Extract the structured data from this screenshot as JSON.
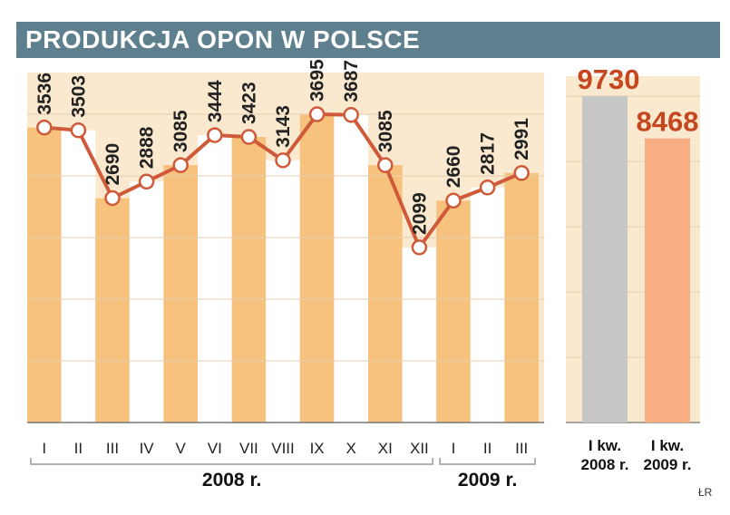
{
  "header": {
    "title": "PRODUKCJA OPON W POLSCE"
  },
  "credit": "ŁR",
  "colors": {
    "panel_bg": "#fbe9cf",
    "bar_orange": "#f7c27e",
    "bar_white": "#ffffff",
    "line": "#cf5a3a",
    "q_grey": "#c6c6c6",
    "q_orange": "#f6ae82",
    "q_value": "#c5461f"
  },
  "chart_data": [
    {
      "type": "line",
      "title": "",
      "categories": [
        "I",
        "II",
        "III",
        "IV",
        "V",
        "VI",
        "VII",
        "VIII",
        "IX",
        "X",
        "XI",
        "XII",
        "I",
        "II",
        "III"
      ],
      "values": [
        3536,
        3503,
        2690,
        2888,
        3085,
        3444,
        3423,
        3143,
        3695,
        3687,
        3085,
        2099,
        2660,
        2817,
        2991
      ],
      "groups": [
        {
          "label": "2008 r.",
          "from": 0,
          "to": 11
        },
        {
          "label": "2009 r.",
          "from": 12,
          "to": 14
        }
      ],
      "xlabel": "",
      "ylabel": "",
      "ylim": [
        0,
        4130
      ],
      "grid": true,
      "style": "alternating filled columns under line"
    },
    {
      "type": "bar",
      "title": "",
      "categories": [
        {
          "line1": "I kw.",
          "line2": "2008 r."
        },
        {
          "line1": "I kw.",
          "line2": "2009 r."
        }
      ],
      "values": [
        9730,
        8468
      ],
      "ylim": [
        0,
        10000
      ],
      "grid": true
    }
  ]
}
